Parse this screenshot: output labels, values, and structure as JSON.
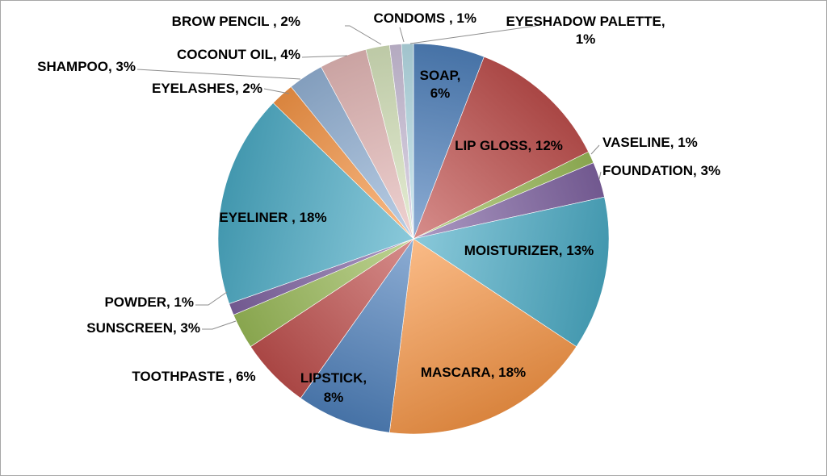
{
  "chart_data": {
    "type": "pie",
    "title": "",
    "start": "12 o'clock, clockwise",
    "slices": [
      {
        "label": "SOAP, 6%",
        "category": "SOAP",
        "value": 6,
        "color": "#4f81bd"
      },
      {
        "label": "LIP GLOSS, 12%",
        "category": "LIP GLOSS",
        "value": 12,
        "color": "#c0504d"
      },
      {
        "label": "VASELINE, 1%",
        "category": "VASELINE",
        "value": 1,
        "color": "#9bbb59"
      },
      {
        "label": "FOUNDATION, 3%",
        "category": "FOUNDATION",
        "value": 3,
        "color": "#8064a2"
      },
      {
        "label": "MOISTURIZER, 13%",
        "category": "MOISTURIZER",
        "value": 13,
        "color": "#4bacc6"
      },
      {
        "label": "MASCARA, 18%",
        "category": "MASCARA",
        "value": 18,
        "color": "#f79646"
      },
      {
        "label": "LIPSTICK, 8%",
        "category": "LIPSTICK",
        "value": 8,
        "color": "#4f81bd"
      },
      {
        "label": "TOOTHPASTE , 6%",
        "category": "TOOTHPASTE",
        "value": 6,
        "color": "#c0504d"
      },
      {
        "label": "SUNSCREEN, 3%",
        "category": "SUNSCREEN",
        "value": 3,
        "color": "#9bbb59"
      },
      {
        "label": "POWDER, 1%",
        "category": "POWDER",
        "value": 1,
        "color": "#8064a2"
      },
      {
        "label": "EYELINER , 18%",
        "category": "EYELINER",
        "value": 18,
        "color": "#4bacc6"
      },
      {
        "label": "EYELASHES, 2%",
        "category": "EYELASHES",
        "value": 2,
        "color": "#f79646"
      },
      {
        "label": "SHAMPOO, 3%",
        "category": "SHAMPOO",
        "value": 3,
        "color": "#95b3d7"
      },
      {
        "label": "COCONUT OIL, 4%",
        "category": "COCONUT OIL",
        "value": 4,
        "color": "#e6b9b8"
      },
      {
        "label": "BROW PENCIL , 2%",
        "category": "BROW PENCIL",
        "value": 2,
        "color": "#d7e4bd"
      },
      {
        "label": "CONDOMS , 1%",
        "category": "CONDOMS",
        "value": 1,
        "color": "#ccc1da"
      },
      {
        "label": "EYESHADOW PALETTE, 1%",
        "category": "EYESHADOW PALETTE",
        "value": 1,
        "color": "#b7dee8"
      }
    ]
  }
}
